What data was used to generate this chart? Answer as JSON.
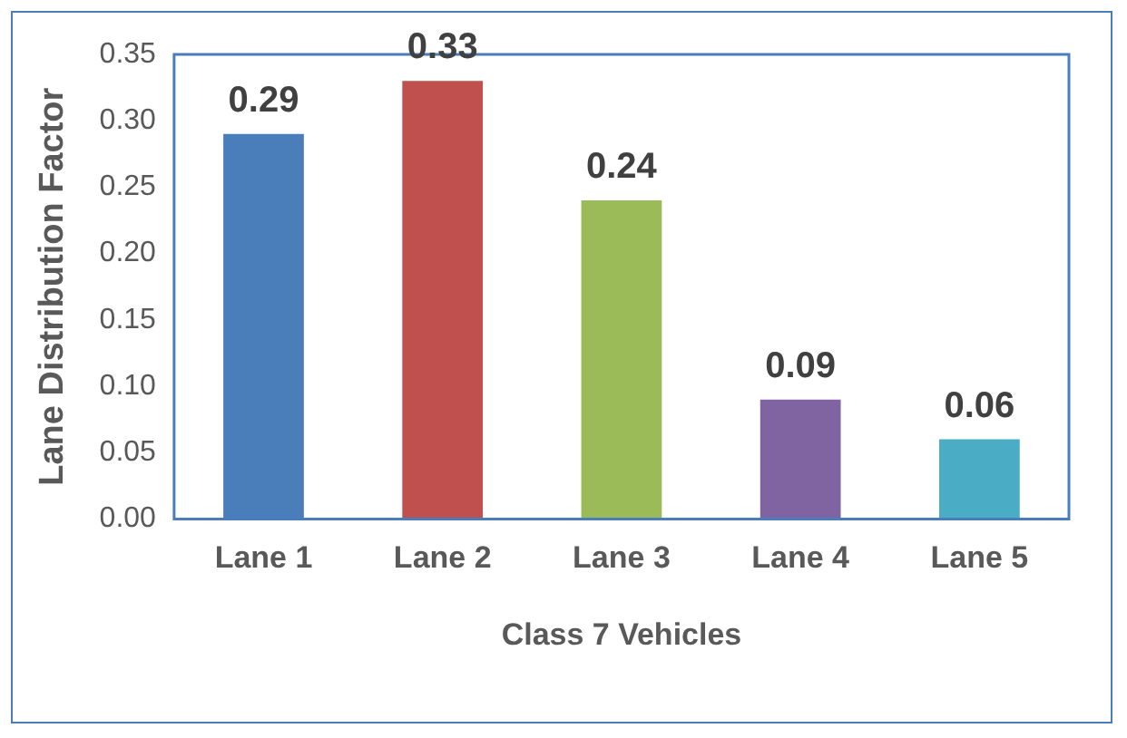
{
  "chart_data": {
    "type": "bar",
    "xlabel": "Class 7 Vehicles",
    "ylabel": "Lane Distribution Factor",
    "categories": [
      "Lane 1",
      "Lane 2",
      "Lane 3",
      "Lane 4",
      "Lane 5"
    ],
    "values": [
      0.29,
      0.33,
      0.24,
      0.09,
      0.06
    ],
    "colors": [
      "#4a7ebb",
      "#c0504d",
      "#9bbb59",
      "#8064a2",
      "#4bacc6"
    ],
    "ylim": [
      0,
      0.35
    ],
    "yticks": [
      {
        "value": 0,
        "label": "0.00"
      },
      {
        "value": 0.05,
        "label": "0.05"
      },
      {
        "value": 0.1,
        "label": "0.10"
      },
      {
        "value": 0.15,
        "label": "0.15"
      },
      {
        "value": 0.2,
        "label": "0.20"
      },
      {
        "value": 0.25,
        "label": "0.25"
      },
      {
        "value": 0.3,
        "label": "0.30"
      },
      {
        "value": 0.35,
        "label": "0.35"
      }
    ],
    "data_labels": true,
    "grid": false,
    "legend": false
  }
}
